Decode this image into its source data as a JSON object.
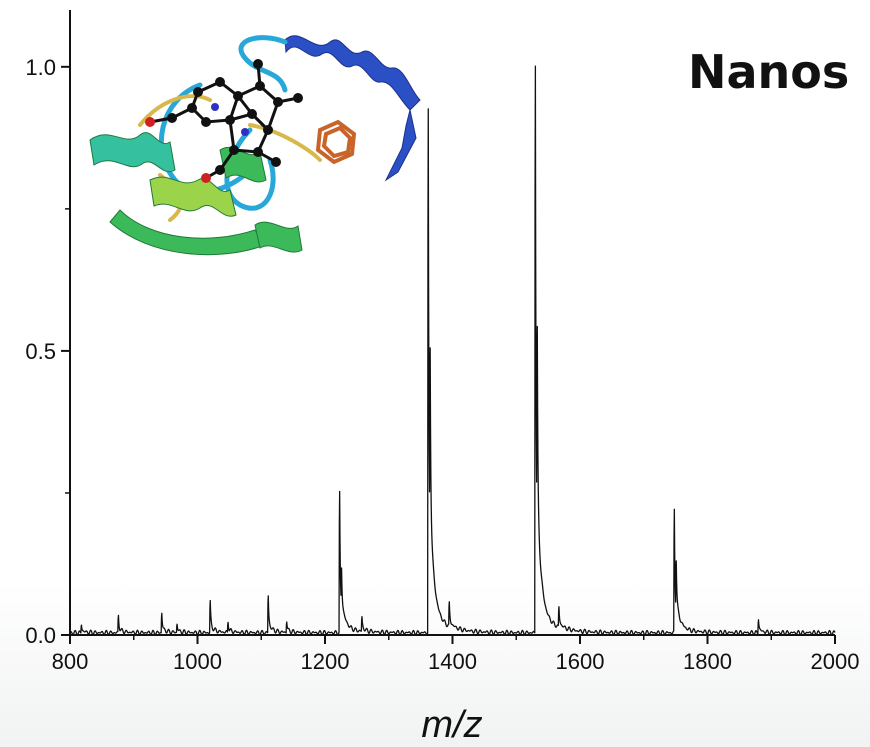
{
  "chart_data": {
    "type": "line",
    "title": "Nanos",
    "xlabel": "m/z",
    "ylabel": "",
    "xlim": [
      800,
      2000
    ],
    "ylim": [
      0,
      1.1
    ],
    "xticks": [
      800,
      1000,
      1200,
      1400,
      1600,
      1800,
      2000
    ],
    "yticks": [
      0.0,
      0.5,
      1.0
    ],
    "ytick_labels": [
      "0.0",
      "0.5",
      "1.0"
    ],
    "grid": false,
    "series": [
      {
        "color": "#111111",
        "peaks": [
          {
            "x": 818,
            "y": 0.015
          },
          {
            "x": 876,
            "y": 0.03
          },
          {
            "x": 944,
            "y": 0.035
          },
          {
            "x": 968,
            "y": 0.015
          },
          {
            "x": 1020,
            "y": 0.055
          },
          {
            "x": 1048,
            "y": 0.02
          },
          {
            "x": 1111,
            "y": 0.065
          },
          {
            "x": 1140,
            "y": 0.02
          },
          {
            "x": 1223,
            "y": 0.245
          },
          {
            "x": 1226,
            "y": 0.07
          },
          {
            "x": 1258,
            "y": 0.025
          },
          {
            "x": 1362,
            "y": 0.92
          },
          {
            "x": 1365,
            "y": 0.33
          },
          {
            "x": 1395,
            "y": 0.04
          },
          {
            "x": 1530,
            "y": 1.0
          },
          {
            "x": 1533,
            "y": 0.35
          },
          {
            "x": 1567,
            "y": 0.035
          },
          {
            "x": 1748,
            "y": 0.215
          },
          {
            "x": 1751,
            "y": 0.09
          },
          {
            "x": 1880,
            "y": 0.025
          }
        ]
      }
    ]
  },
  "inset": {
    "description_icon": "protein-ribbon-structure",
    "colors": {
      "helix_blue": "#2b4fc4",
      "loop_cyan": "#27a8d8",
      "green": "#3cba5a",
      "lime": "#9bd44a",
      "yellow": "#d8b84a",
      "orange": "#c8642a"
    }
  }
}
